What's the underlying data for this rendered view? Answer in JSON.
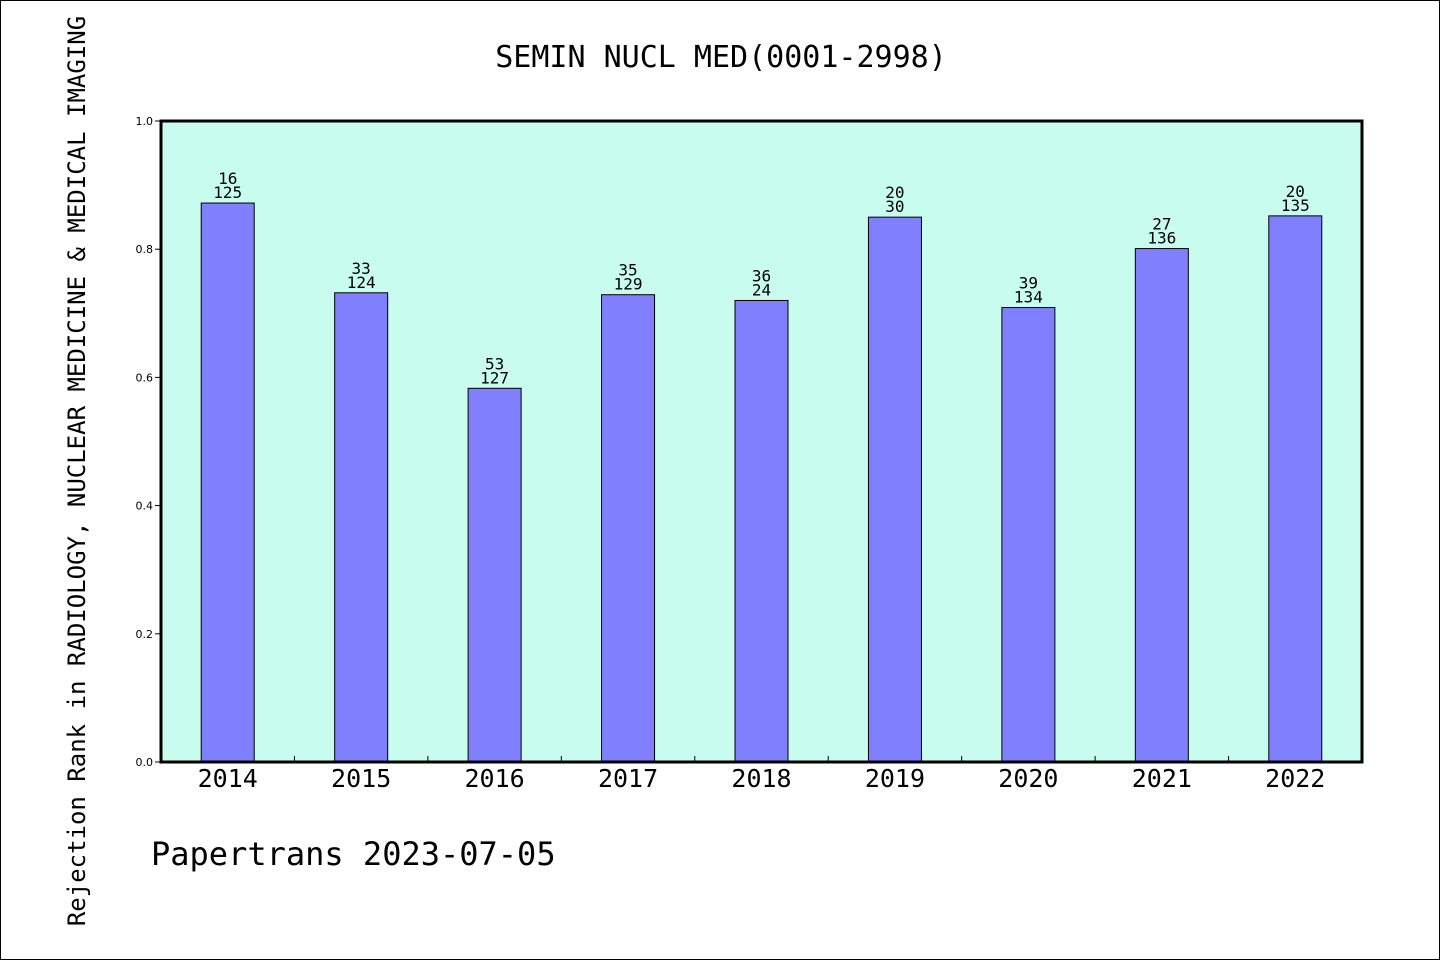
{
  "chart_data": {
    "type": "bar",
    "title": "SEMIN NUCL MED(0001-2998)",
    "ylabel": "Rejection Rank in RADIOLOGY, NUCLEAR MEDICINE & MEDICAL IMAGING",
    "xlabel": "",
    "categories": [
      "2014",
      "2015",
      "2016",
      "2017",
      "2018",
      "2019",
      "2020",
      "2021",
      "2022"
    ],
    "values": [
      0.872,
      0.732,
      0.583,
      0.729,
      0.72,
      0.85,
      0.709,
      0.801,
      0.852
    ],
    "label_top": [
      "16",
      "33",
      "53",
      "35",
      "36",
      "20",
      "39",
      "27",
      "20"
    ],
    "label_bottom": [
      "125",
      "124",
      "127",
      "129",
      "24",
      "30",
      "134",
      "136",
      "135"
    ],
    "ylim": [
      0,
      1.0
    ],
    "yticks": [
      "0.0",
      "0.2",
      "0.4",
      "0.6",
      "0.8",
      "1.0"
    ],
    "grid": false,
    "colors": {
      "plot_bg": "#c8fcee",
      "bar": "#8080ff",
      "bar_edge": "#000000"
    }
  },
  "footer": {
    "text": "Papertrans 2023-07-05"
  }
}
